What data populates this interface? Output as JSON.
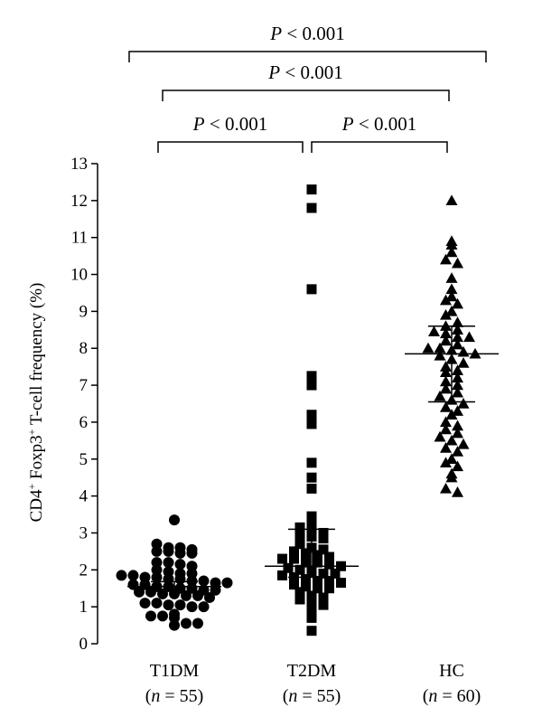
{
  "chart_data": {
    "type": "scatter",
    "title": "",
    "ylabel": {
      "prefix": "CD4",
      "sup1": "+",
      "middle": " Foxp3",
      "sup2": "+",
      "suffix": " T-cell frequency (%)"
    },
    "xlabel": "",
    "ylim": [
      0,
      13
    ],
    "yticks": [
      "0",
      "1",
      "2",
      "3",
      "4",
      "5",
      "6",
      "7",
      "8",
      "9",
      "10",
      "11",
      "12",
      "13"
    ],
    "grid": false,
    "groups": [
      {
        "label": "T1DM",
        "n_text": "(n = 55)",
        "n_italic": "n",
        "n_rest_pre": "(",
        "n_rest_post": " = 55)",
        "marker": "circle",
        "mean": 1.55,
        "sem_low": 1.42,
        "sem_high": 1.68,
        "values": [
          3.35,
          2.7,
          2.6,
          2.6,
          2.55,
          2.5,
          2.5,
          2.45,
          2.45,
          2.2,
          2.2,
          2.15,
          2.1,
          2.0,
          1.95,
          1.9,
          1.9,
          1.85,
          1.85,
          1.8,
          1.8,
          1.75,
          1.75,
          1.7,
          1.7,
          1.65,
          1.65,
          1.6,
          1.6,
          1.55,
          1.55,
          1.5,
          1.5,
          1.45,
          1.45,
          1.4,
          1.4,
          1.35,
          1.35,
          1.3,
          1.3,
          1.25,
          1.1,
          1.1,
          1.05,
          1.05,
          1.0,
          1.0,
          0.8,
          0.75,
          0.75,
          0.7,
          0.55,
          0.55,
          0.5
        ]
      },
      {
        "label": "T2DM",
        "n_italic": "n",
        "n_rest_pre": "(",
        "n_rest_post": " = 55)",
        "marker": "square",
        "mean": 2.1,
        "sem_low": 1.8,
        "sem_high": 3.1,
        "values": [
          12.3,
          11.8,
          9.6,
          7.25,
          7.0,
          6.2,
          5.95,
          4.9,
          4.5,
          4.2,
          3.45,
          3.3,
          3.15,
          3.1,
          3.0,
          2.95,
          2.9,
          2.85,
          2.7,
          2.6,
          2.55,
          2.5,
          2.45,
          2.4,
          2.35,
          2.3,
          2.3,
          2.2,
          2.2,
          2.15,
          2.1,
          2.05,
          2.0,
          1.95,
          1.9,
          1.9,
          1.85,
          1.8,
          1.75,
          1.7,
          1.7,
          1.65,
          1.6,
          1.55,
          1.5,
          1.5,
          1.4,
          1.3,
          1.25,
          1.2,
          1.2,
          1.05,
          0.95,
          0.7,
          0.35
        ]
      },
      {
        "label": "HC",
        "n_italic": "n",
        "n_rest_pre": "(",
        "n_rest_post": " = 60)",
        "marker": "triangle",
        "mean": 7.85,
        "sem_low": 6.55,
        "sem_high": 8.6,
        "values": [
          12.0,
          10.9,
          10.8,
          10.6,
          10.4,
          10.3,
          9.9,
          9.6,
          9.4,
          9.3,
          9.2,
          9.0,
          8.9,
          8.7,
          8.6,
          8.5,
          8.45,
          8.4,
          8.3,
          8.3,
          8.2,
          8.1,
          8.0,
          8.0,
          7.95,
          7.9,
          7.85,
          7.8,
          7.7,
          7.6,
          7.5,
          7.4,
          7.35,
          7.2,
          7.1,
          7.0,
          6.9,
          6.8,
          6.7,
          6.6,
          6.5,
          6.4,
          6.3,
          6.2,
          6.0,
          5.9,
          5.8,
          5.7,
          5.6,
          5.5,
          5.4,
          5.3,
          5.2,
          5.0,
          4.9,
          4.8,
          4.6,
          4.5,
          4.2,
          4.1
        ]
      }
    ],
    "comparisons": [
      {
        "from": 0,
        "to": 2,
        "p": "P",
        "op": " < 0.001"
      },
      {
        "from": 0,
        "to": 2,
        "p": "P",
        "op": " < 0.001",
        "level": 2
      },
      {
        "from": 0,
        "to": 1,
        "p": "P",
        "op": " < 0.001"
      },
      {
        "from": 1,
        "to": 2,
        "p": "P",
        "op": " < 0.001"
      }
    ]
  }
}
